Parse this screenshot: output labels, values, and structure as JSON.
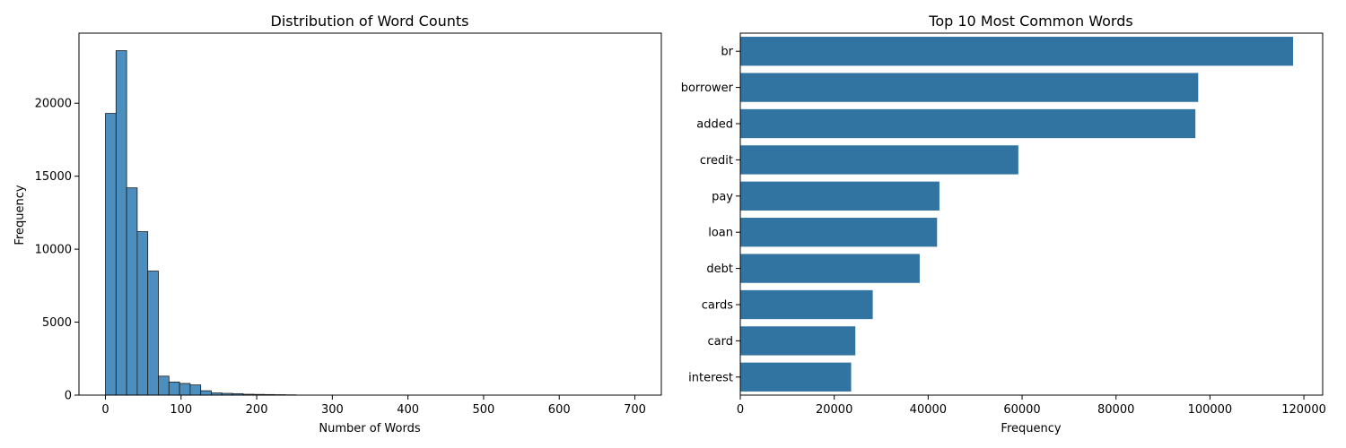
{
  "colors": {
    "hist_fill": "#4c8fbf",
    "bar_fill": "#3274a1",
    "edge": "#1a1a1a",
    "axis": "#000000"
  },
  "chart_data": [
    {
      "type": "bar",
      "subtype": "histogram",
      "title": "Distribution of Word Counts",
      "xlabel": "Number of Words",
      "ylabel": "Frequency",
      "xlim": [
        -35,
        735
      ],
      "ylim": [
        0,
        24800
      ],
      "xticks": [
        0,
        100,
        200,
        300,
        400,
        500,
        600,
        700
      ],
      "yticks": [
        0,
        5000,
        10000,
        15000,
        20000
      ],
      "bin_width": 14,
      "bin_start": 0,
      "values": [
        19300,
        23600,
        14200,
        11200,
        8500,
        1300,
        900,
        800,
        700,
        300,
        150,
        120,
        100,
        60,
        50,
        40,
        30,
        20
      ]
    },
    {
      "type": "bar",
      "orientation": "horizontal",
      "title": "Top 10 Most Common Words",
      "xlabel": "Frequency",
      "ylabel": "",
      "xlim": [
        0,
        124000
      ],
      "xticks": [
        0,
        20000,
        40000,
        60000,
        80000,
        100000,
        120000
      ],
      "categories": [
        "br",
        "borrower",
        "added",
        "credit",
        "pay",
        "loan",
        "debt",
        "cards",
        "card",
        "interest"
      ],
      "values": [
        117700,
        97500,
        96900,
        59200,
        42400,
        41900,
        38200,
        28200,
        24500,
        23600
      ]
    }
  ]
}
